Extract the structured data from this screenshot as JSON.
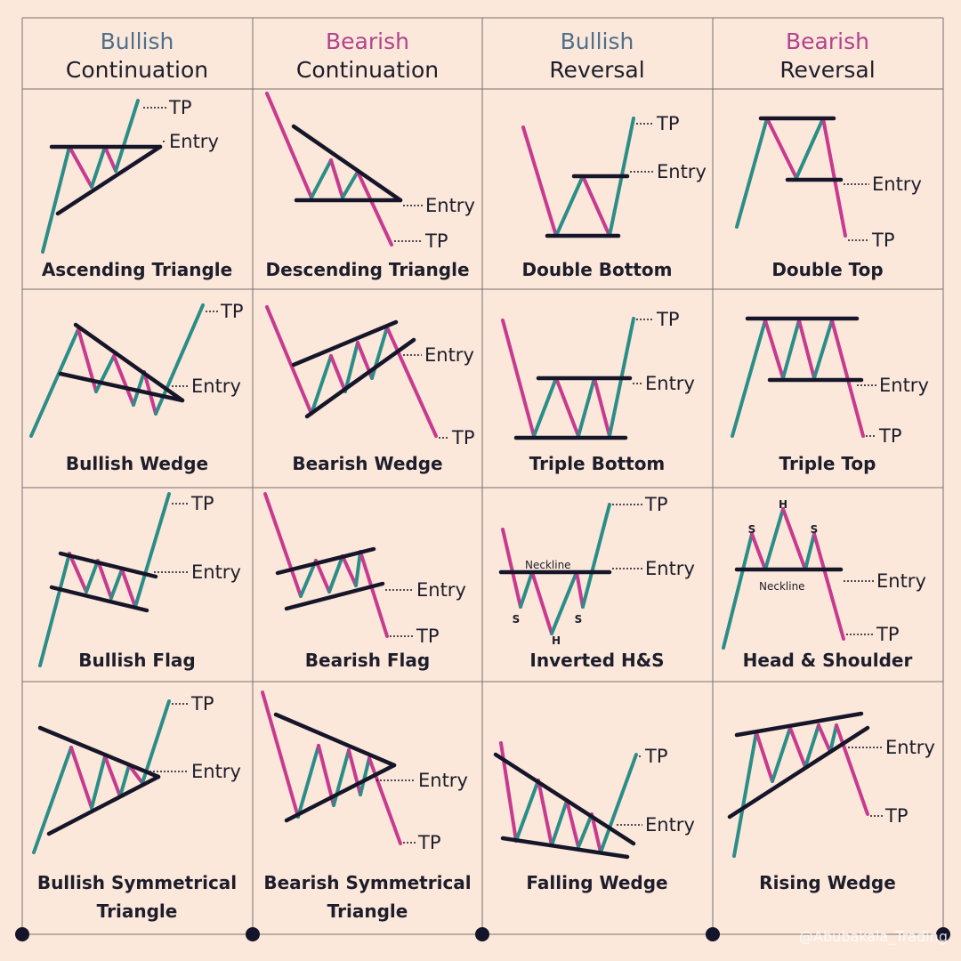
{
  "columns": [
    {
      "sentiment": "Bullish",
      "kind": "Continuation"
    },
    {
      "sentiment": "Bearish",
      "kind": "Continuation"
    },
    {
      "sentiment": "Bullish",
      "kind": "Reversal"
    },
    {
      "sentiment": "Bearish",
      "kind": "Reversal"
    }
  ],
  "cells": [
    {
      "name": [
        "Ascending Triangle"
      ],
      "labels": {
        "tp": "TP",
        "entry": "Entry"
      }
    },
    {
      "name": [
        "Descending Triangle"
      ],
      "labels": {
        "entry": "Entry",
        "tp": "TP"
      }
    },
    {
      "name": [
        "Double Bottom"
      ],
      "labels": {
        "tp": "TP",
        "entry": "Entry"
      }
    },
    {
      "name": [
        "Double Top"
      ],
      "labels": {
        "entry": "Entry",
        "tp": "TP"
      }
    },
    {
      "name": [
        "Bullish Wedge"
      ],
      "labels": {
        "tp": "TP",
        "entry": "Entry"
      }
    },
    {
      "name": [
        "Bearish Wedge"
      ],
      "labels": {
        "entry": "Entry",
        "tp": "TP"
      }
    },
    {
      "name": [
        "Triple Bottom"
      ],
      "labels": {
        "tp": "TP",
        "entry": "Entry"
      }
    },
    {
      "name": [
        "Triple Top"
      ],
      "labels": {
        "entry": "Entry",
        "tp": "TP"
      }
    },
    {
      "name": [
        "Bullish Flag"
      ],
      "labels": {
        "tp": "TP",
        "entry": "Entry"
      }
    },
    {
      "name": [
        "Bearish Flag"
      ],
      "labels": {
        "entry": "Entry",
        "tp": "TP"
      }
    },
    {
      "name": [
        "Inverted H&S"
      ],
      "labels": {
        "neckline": "Neckline",
        "s1": "S",
        "h": "H",
        "s2": "S",
        "tp": "TP",
        "entry": "Entry"
      }
    },
    {
      "name": [
        "Head & Shoulder"
      ],
      "labels": {
        "s1": "S",
        "h": "H",
        "s2": "S",
        "neckline": "Neckline",
        "entry": "Entry",
        "tp": "TP"
      }
    },
    {
      "name": [
        "Bullish Symmetrical",
        "Triangle"
      ],
      "labels": {
        "tp": "TP",
        "entry": "Entry"
      }
    },
    {
      "name": [
        "Bearish Symmetrical",
        "Triangle"
      ],
      "labels": {
        "entry": "Entry",
        "tp": "TP"
      }
    },
    {
      "name": [
        "Falling Wedge"
      ],
      "labels": {
        "tp": "TP",
        "entry": "Entry"
      }
    },
    {
      "name": [
        "Rising Wedge"
      ],
      "labels": {
        "entry": "Entry",
        "tp": "TP"
      }
    }
  ],
  "watermark": "@Abubakala_Trading"
}
